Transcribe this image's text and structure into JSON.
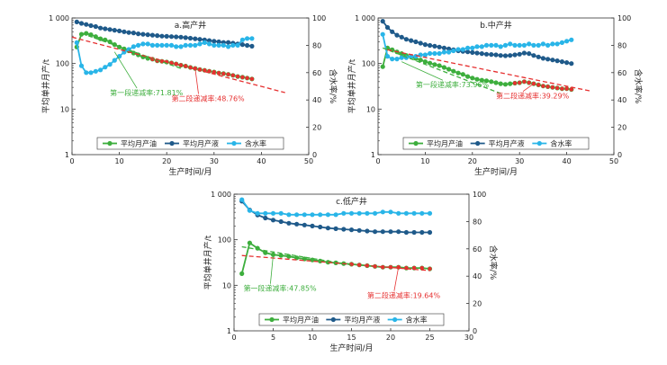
{
  "chart_data": [
    {
      "type": "line",
      "title": "a.高产井",
      "xlabel": "生产时间/月",
      "ylabel": "平均单井月产/t",
      "y2label": "含水率/%",
      "xlim": [
        0,
        50
      ],
      "xticks": [
        "0",
        "10",
        "20",
        "30",
        "40",
        "50"
      ],
      "ylim": [
        1,
        1000
      ],
      "yscale": "log",
      "yticks": [
        "1",
        "10",
        "100",
        "1 000"
      ],
      "y2lim": [
        0,
        100
      ],
      "y2ticks": [
        "0",
        "20",
        "40",
        "60",
        "80",
        "100"
      ],
      "legend_position": "bottom",
      "series": [
        {
          "name": "平均月产油",
          "axis": "left",
          "color": "#3dae3d",
          "x": [
            1,
            2,
            3,
            4,
            5,
            6,
            7,
            8,
            9,
            10,
            11,
            12,
            13,
            14,
            15,
            16,
            17,
            18,
            19,
            20,
            21,
            22,
            23,
            24,
            25,
            26,
            27,
            28,
            29,
            30,
            31,
            32,
            33,
            34,
            35,
            36,
            37,
            38
          ],
          "values": [
            230,
            440,
            460,
            430,
            390,
            350,
            330,
            300,
            260,
            230,
            210,
            190,
            170,
            155,
            140,
            130,
            125,
            115,
            112,
            108,
            103,
            98,
            92,
            88,
            82,
            78,
            74,
            71,
            68,
            65,
            62,
            60,
            58,
            55,
            52,
            50,
            48,
            46
          ]
        },
        {
          "name": "平均月产液",
          "axis": "left",
          "color": "#1f5a8a",
          "x": [
            1,
            2,
            3,
            4,
            5,
            6,
            7,
            8,
            9,
            10,
            11,
            12,
            13,
            14,
            15,
            16,
            17,
            18,
            19,
            20,
            21,
            22,
            23,
            24,
            25,
            26,
            27,
            28,
            29,
            30,
            31,
            32,
            33,
            34,
            35,
            36,
            37,
            38
          ],
          "values": [
            820,
            760,
            720,
            680,
            650,
            600,
            580,
            560,
            540,
            520,
            500,
            480,
            470,
            450,
            440,
            430,
            420,
            410,
            400,
            395,
            390,
            385,
            380,
            370,
            360,
            350,
            340,
            330,
            320,
            310,
            300,
            290,
            290,
            280,
            270,
            260,
            250,
            240
          ]
        },
        {
          "name": "含水率",
          "axis": "right",
          "color": "#29b5e8",
          "x": [
            1,
            2,
            3,
            4,
            5,
            6,
            7,
            8,
            9,
            10,
            11,
            12,
            13,
            14,
            15,
            16,
            17,
            18,
            19,
            20,
            21,
            22,
            23,
            24,
            25,
            26,
            27,
            28,
            29,
            30,
            31,
            32,
            33,
            34,
            35,
            36,
            37,
            38
          ],
          "values": [
            82,
            65,
            60,
            60,
            61,
            62,
            64,
            66,
            69,
            72,
            75,
            77,
            79,
            80,
            81,
            81,
            80,
            80,
            80,
            80,
            80,
            79,
            79,
            80,
            80,
            80,
            81,
            82,
            81,
            80,
            80,
            80,
            79,
            80,
            80,
            84,
            85,
            85
          ]
        }
      ],
      "trend_lines": [
        {
          "name": "stage1",
          "color": "#3dae3d",
          "x": [
            2,
            23
          ],
          "values": [
            460,
            78
          ]
        },
        {
          "name": "stage2",
          "color": "#e63030",
          "x": [
            0,
            45
          ],
          "values": [
            380,
            23
          ]
        }
      ],
      "annotations": [
        {
          "text": "第一段递减率:71.81%",
          "color": "#3dae3d",
          "x": 8,
          "y": 20,
          "arrow_to": [
            9,
            180
          ]
        },
        {
          "text": "第二段递减率:48.76%",
          "color": "#e63030",
          "x": 21,
          "y": 15,
          "arrow_to": [
            26,
            78
          ]
        }
      ]
    },
    {
      "type": "line",
      "title": "b.中产井",
      "xlabel": "生产时间/月",
      "ylabel": "平均单井月产/t",
      "y2label": "含水率/%",
      "xlim": [
        0,
        50
      ],
      "xticks": [
        "0",
        "10",
        "20",
        "30",
        "40",
        "50"
      ],
      "ylim": [
        1,
        1000
      ],
      "yscale": "log",
      "yticks": [
        "1",
        "10",
        "100",
        "1 000"
      ],
      "y2lim": [
        0,
        100
      ],
      "y2ticks": [
        "0",
        "20",
        "40",
        "60",
        "80",
        "100"
      ],
      "legend_position": "bottom",
      "series": [
        {
          "name": "平均月产油",
          "axis": "left",
          "color": "#3dae3d",
          "x": [
            1,
            2,
            3,
            4,
            5,
            6,
            7,
            8,
            9,
            10,
            11,
            12,
            13,
            14,
            15,
            16,
            17,
            18,
            19,
            20,
            21,
            22,
            23,
            24,
            25,
            26,
            27,
            28,
            29,
            30,
            31,
            32,
            33,
            34,
            35,
            36,
            37,
            38,
            39,
            40,
            41
          ],
          "values": [
            85,
            220,
            200,
            180,
            165,
            150,
            140,
            130,
            120,
            110,
            102,
            95,
            90,
            82,
            75,
            68,
            62,
            58,
            52,
            48,
            45,
            43,
            42,
            40,
            38,
            36,
            35,
            36,
            37,
            38,
            40,
            38,
            36,
            34,
            32,
            31,
            30,
            29,
            28,
            28,
            27
          ]
        },
        {
          "name": "平均月产液",
          "axis": "left",
          "color": "#1f5a8a",
          "x": [
            1,
            2,
            3,
            4,
            5,
            6,
            7,
            8,
            9,
            10,
            11,
            12,
            13,
            14,
            15,
            16,
            17,
            18,
            19,
            20,
            21,
            22,
            23,
            24,
            25,
            26,
            27,
            28,
            29,
            30,
            31,
            32,
            33,
            34,
            35,
            36,
            37,
            38,
            39,
            40,
            41
          ],
          "values": [
            850,
            620,
            500,
            420,
            380,
            340,
            320,
            300,
            280,
            260,
            250,
            240,
            230,
            220,
            210,
            200,
            190,
            185,
            180,
            175,
            170,
            165,
            160,
            158,
            155,
            150,
            148,
            150,
            155,
            160,
            170,
            165,
            150,
            140,
            130,
            125,
            120,
            115,
            110,
            105,
            100
          ]
        },
        {
          "name": "含水率",
          "axis": "right",
          "color": "#29b5e8",
          "x": [
            1,
            2,
            3,
            4,
            5,
            6,
            7,
            8,
            9,
            10,
            11,
            12,
            13,
            14,
            15,
            16,
            17,
            18,
            19,
            20,
            21,
            22,
            23,
            24,
            25,
            26,
            27,
            28,
            29,
            30,
            31,
            32,
            33,
            34,
            35,
            36,
            37,
            38,
            39,
            40,
            41
          ],
          "values": [
            88,
            72,
            70,
            70,
            71,
            71,
            72,
            72,
            73,
            73,
            74,
            74,
            74,
            75,
            75,
            76,
            77,
            77,
            78,
            78,
            79,
            79,
            80,
            80,
            80,
            79,
            80,
            81,
            80,
            80,
            80,
            81,
            80,
            80,
            81,
            80,
            81,
            81,
            82,
            83,
            84
          ]
        }
      ],
      "trend_lines": [
        {
          "name": "stage1",
          "color": "#3dae3d",
          "x": [
            1,
            26
          ],
          "values": [
            220,
            22
          ]
        },
        {
          "name": "stage2",
          "color": "#e63030",
          "x": [
            2,
            45
          ],
          "values": [
            200,
            25
          ]
        }
      ],
      "annotations": [
        {
          "text": "第一段递减率:73.96%",
          "color": "#3dae3d",
          "x": 8,
          "y": 30,
          "arrow_to": [
            5,
            110
          ]
        },
        {
          "text": "第二段递减率:39.29%",
          "color": "#e63030",
          "x": 25,
          "y": 17,
          "arrow_to": [
            33,
            36
          ]
        }
      ]
    },
    {
      "type": "line",
      "title": "c.低产井",
      "xlabel": "生产时间/月",
      "ylabel": "平均单井月产/t",
      "y2label": "含水率/%",
      "xlim": [
        0,
        30
      ],
      "xticks": [
        "0",
        "5",
        "10",
        "15",
        "20",
        "25",
        "30"
      ],
      "ylim": [
        1,
        1000
      ],
      "yscale": "log",
      "yticks": [
        "1",
        "10",
        "100",
        "1 000"
      ],
      "y2lim": [
        0,
        100
      ],
      "y2ticks": [
        "0",
        "20",
        "40",
        "60",
        "80",
        "100"
      ],
      "legend_position": "bottom",
      "series": [
        {
          "name": "平均月产油",
          "axis": "left",
          "color": "#3dae3d",
          "x": [
            1,
            2,
            3,
            4,
            5,
            6,
            7,
            8,
            9,
            10,
            11,
            12,
            13,
            14,
            15,
            16,
            17,
            18,
            19,
            20,
            21,
            22,
            23,
            24,
            25
          ],
          "values": [
            18,
            85,
            65,
            52,
            47,
            45,
            43,
            40,
            38,
            36,
            34,
            32,
            31,
            30,
            29,
            28,
            27,
            26,
            25,
            25,
            25,
            24,
            24,
            24,
            23
          ]
        },
        {
          "name": "平均月产液",
          "axis": "left",
          "color": "#1f5a8a",
          "x": [
            1,
            2,
            3,
            4,
            5,
            6,
            7,
            8,
            9,
            10,
            11,
            12,
            13,
            14,
            15,
            16,
            17,
            18,
            19,
            20,
            21,
            22,
            23,
            24,
            25
          ],
          "values": [
            700,
            450,
            350,
            300,
            270,
            250,
            230,
            220,
            210,
            200,
            190,
            180,
            175,
            170,
            165,
            160,
            155,
            150,
            150,
            150,
            150,
            145,
            145,
            145,
            145
          ]
        },
        {
          "name": "含水率",
          "axis": "right",
          "color": "#29b5e8",
          "x": [
            1,
            2,
            3,
            4,
            5,
            6,
            7,
            8,
            9,
            10,
            11,
            12,
            13,
            14,
            15,
            16,
            17,
            18,
            19,
            20,
            21,
            22,
            23,
            24,
            25
          ],
          "values": [
            96,
            88,
            86,
            86,
            86,
            86,
            85,
            85,
            85,
            85,
            85,
            85,
            85,
            86,
            86,
            86,
            86,
            86,
            87,
            87,
            86,
            86,
            86,
            86,
            86
          ]
        }
      ],
      "trend_lines": [
        {
          "name": "stage1",
          "color": "#3dae3d",
          "x": [
            1,
            15
          ],
          "values": [
            70,
            28
          ]
        },
        {
          "name": "stage2",
          "color": "#e63030",
          "x": [
            1,
            25
          ],
          "values": [
            45,
            21
          ]
        }
      ],
      "annotations": [
        {
          "text": "第一段递减率:47.85%",
          "color": "#3dae3d",
          "x": 1.2,
          "y": 7.5,
          "arrow_to": [
            5,
            46
          ]
        },
        {
          "text": "第二段递减率:19.64%",
          "color": "#e63030",
          "x": 17,
          "y": 5.2,
          "arrow_to": [
            21,
            25
          ]
        }
      ]
    }
  ]
}
